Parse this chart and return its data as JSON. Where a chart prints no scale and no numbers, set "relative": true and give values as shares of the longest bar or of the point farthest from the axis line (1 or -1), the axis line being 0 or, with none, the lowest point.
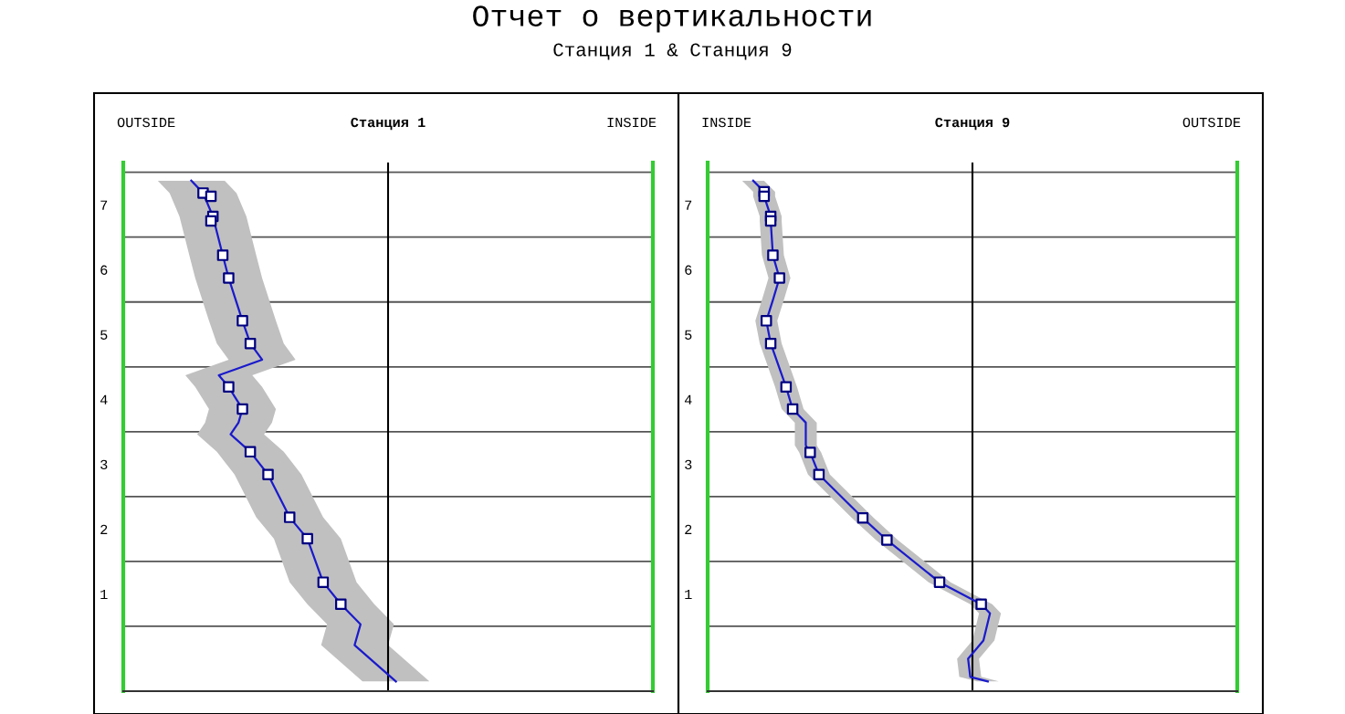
{
  "chart_data": [
    {
      "type": "line",
      "title": "Станция 1",
      "annotations": [
        "Отчет о вертикальности",
        "Станция 1 & Станция 9",
        "OUTSIDE",
        "INSIDE"
      ],
      "orientation": "horizontal",
      "relative": true,
      "ylim": [
        -0.5,
        7.65
      ],
      "yticks": [
        1,
        2,
        3,
        4,
        5,
        6,
        7
      ],
      "tick_labels": "y",
      "ref_lines": [
        {
          "axis": "y",
          "value": 0.5,
          "color": "#555555"
        },
        {
          "axis": "y",
          "value": 1.5,
          "color": "#555555"
        },
        {
          "axis": "y",
          "value": 2.5,
          "color": "#555555"
        },
        {
          "axis": "y",
          "value": 3.5,
          "color": "#555555"
        },
        {
          "axis": "y",
          "value": 4.5,
          "color": "#555555"
        },
        {
          "axis": "y",
          "value": 5.5,
          "color": "#555555"
        },
        {
          "axis": "y",
          "value": 6.5,
          "color": "#555555"
        },
        {
          "axis": "y",
          "value": 7.5,
          "color": "#555555"
        }
      ],
      "series": [
        {
          "type": "line",
          "color": "#1a1acc",
          "x": [
            7.37,
            7.18,
            6.82,
            6.22,
            5.87,
            5.21,
            4.86,
            4.61,
            4.37,
            4.19,
            3.85,
            3.64,
            3.46,
            3.19,
            2.84,
            2.18,
            1.85,
            1.18,
            0.84,
            0.53,
            0.21,
            -0.35
          ],
          "values": [
            -1.0,
            -0.94,
            -0.89,
            -0.84,
            -0.81,
            -0.74,
            -0.7,
            -0.64,
            -0.86,
            -0.81,
            -0.74,
            -0.76,
            -0.8,
            -0.7,
            -0.61,
            -0.5,
            -0.41,
            -0.33,
            -0.24,
            -0.14,
            -0.17,
            0.04
          ],
          "lower": [
            -1.17,
            -1.11,
            -1.06,
            -1.01,
            -0.98,
            -0.91,
            -0.87,
            -0.81,
            -1.03,
            -0.98,
            -0.91,
            -0.93,
            -0.97,
            -0.87,
            -0.78,
            -0.67,
            -0.58,
            -0.5,
            -0.41,
            -0.31,
            -0.34,
            -0.13
          ],
          "upper": [
            -0.83,
            -0.77,
            -0.72,
            -0.67,
            -0.64,
            -0.57,
            -0.53,
            -0.47,
            -0.69,
            -0.64,
            -0.57,
            -0.59,
            -0.63,
            -0.53,
            -0.44,
            -0.33,
            -0.24,
            -0.16,
            -0.07,
            0.03,
            0.0,
            0.21
          ]
        },
        {
          "type": "scatter",
          "color": "#000080",
          "marker": "square",
          "x": [
            7.18,
            7.13,
            6.82,
            6.75,
            6.22,
            5.87,
            5.21,
            4.86,
            4.19,
            3.85,
            3.19,
            2.84,
            2.18,
            1.85,
            1.18,
            0.84
          ],
          "values": [
            -0.94,
            -0.9,
            -0.89,
            -0.9,
            -0.84,
            -0.81,
            -0.74,
            -0.7,
            -0.81,
            -0.74,
            -0.7,
            -0.61,
            -0.5,
            -0.41,
            -0.33,
            -0.24
          ]
        }
      ]
    },
    {
      "type": "line",
      "title": "Станция 9",
      "annotations": [
        "INSIDE",
        "OUTSIDE"
      ],
      "orientation": "horizontal",
      "relative": true,
      "ylim": [
        -0.5,
        7.65
      ],
      "yticks": [
        1,
        2,
        3,
        4,
        5,
        6,
        7
      ],
      "tick_labels": "y",
      "ref_lines": [
        {
          "axis": "y",
          "value": 0.5,
          "color": "#555555"
        },
        {
          "axis": "y",
          "value": 1.5,
          "color": "#555555"
        },
        {
          "axis": "y",
          "value": 2.5,
          "color": "#555555"
        },
        {
          "axis": "y",
          "value": 3.5,
          "color": "#555555"
        },
        {
          "axis": "y",
          "value": 4.5,
          "color": "#555555"
        },
        {
          "axis": "y",
          "value": 5.5,
          "color": "#555555"
        },
        {
          "axis": "y",
          "value": 6.5,
          "color": "#555555"
        },
        {
          "axis": "y",
          "value": 7.5,
          "color": "#555555"
        }
      ],
      "series": [
        {
          "type": "line",
          "color": "#1a1acc",
          "x": [
            7.37,
            7.2,
            7.13,
            6.82,
            6.75,
            6.22,
            5.87,
            5.53,
            5.21,
            4.86,
            4.19,
            3.85,
            3.64,
            3.29,
            3.18,
            2.84,
            2.17,
            1.83,
            1.18,
            0.84,
            0.7,
            0.28,
            0.0,
            -0.28,
            -0.35
          ],
          "values": [
            -1.0,
            -0.95,
            -0.95,
            -0.92,
            -0.92,
            -0.91,
            -0.88,
            -0.91,
            -0.94,
            -0.92,
            -0.85,
            -0.82,
            -0.76,
            -0.76,
            -0.74,
            -0.7,
            -0.5,
            -0.39,
            -0.15,
            0.04,
            0.08,
            0.05,
            -0.02,
            -0.01,
            0.07
          ],
          "lower": [
            -1.05,
            -1.0,
            -1.0,
            -0.97,
            -0.97,
            -0.96,
            -0.93,
            -0.96,
            -0.99,
            -0.97,
            -0.9,
            -0.87,
            -0.81,
            -0.81,
            -0.79,
            -0.75,
            -0.55,
            -0.44,
            -0.2,
            -0.01,
            0.03,
            0.0,
            -0.07,
            -0.06,
            0.02
          ],
          "upper": [
            -0.95,
            -0.9,
            -0.9,
            -0.87,
            -0.87,
            -0.86,
            -0.83,
            -0.86,
            -0.89,
            -0.87,
            -0.8,
            -0.77,
            -0.71,
            -0.71,
            -0.69,
            -0.65,
            -0.45,
            -0.34,
            -0.1,
            0.09,
            0.13,
            0.1,
            0.03,
            0.04,
            0.12
          ]
        },
        {
          "type": "scatter",
          "color": "#000080",
          "marker": "square",
          "x": [
            7.2,
            7.13,
            6.82,
            6.75,
            6.22,
            5.87,
            5.21,
            4.86,
            4.19,
            3.85,
            3.18,
            2.84,
            2.17,
            1.83,
            1.18,
            0.84
          ],
          "values": [
            -0.95,
            -0.95,
            -0.92,
            -0.92,
            -0.91,
            -0.88,
            -0.94,
            -0.92,
            -0.85,
            -0.82,
            -0.74,
            -0.7,
            -0.5,
            -0.39,
            -0.15,
            0.04
          ]
        }
      ]
    }
  ]
}
